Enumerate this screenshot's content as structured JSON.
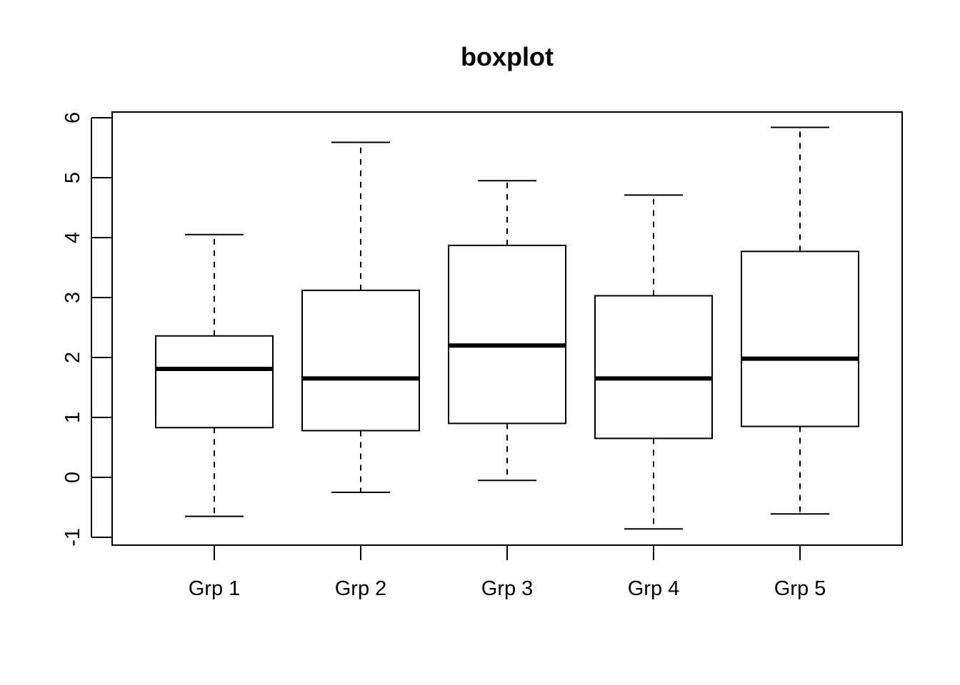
{
  "chart_data": {
    "type": "boxplot",
    "title": "boxplot",
    "xlabel": "",
    "ylabel": "",
    "ylim": [
      -1.1,
      6.1
    ],
    "yticks": [
      -1,
      0,
      1,
      2,
      3,
      4,
      5,
      6
    ],
    "grid": false,
    "categories": [
      "Grp 1",
      "Grp 2",
      "Grp 3",
      "Grp 4",
      "Grp 5"
    ],
    "boxes": [
      {
        "min": -0.65,
        "q1": 0.83,
        "median": 1.81,
        "q3": 2.36,
        "max": 4.05
      },
      {
        "min": -0.25,
        "q1": 0.78,
        "median": 1.65,
        "q3": 3.12,
        "max": 5.59
      },
      {
        "min": -0.05,
        "q1": 0.9,
        "median": 2.2,
        "q3": 3.87,
        "max": 4.95
      },
      {
        "min": -0.86,
        "q1": 0.65,
        "median": 1.65,
        "q3": 3.03,
        "max": 4.71
      },
      {
        "min": -0.61,
        "q1": 0.85,
        "median": 1.98,
        "q3": 3.77,
        "max": 5.84
      }
    ]
  }
}
